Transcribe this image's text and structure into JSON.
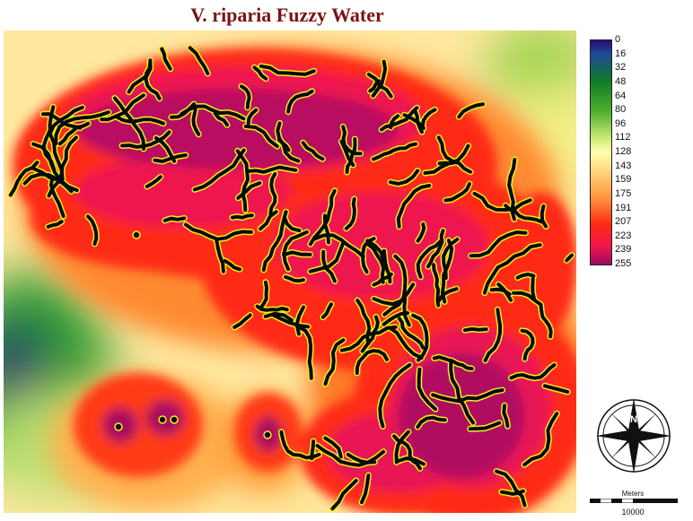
{
  "title": "V. riparia Fuzzy Water",
  "legend": {
    "ticks": [
      "0",
      "16",
      "32",
      "48",
      "64",
      "80",
      "96",
      "112",
      "128",
      "143",
      "159",
      "175",
      "191",
      "207",
      "223",
      "239",
      "255"
    ],
    "min": 0,
    "max": 255
  },
  "north_arrow": {
    "label": "N"
  },
  "scale_bar": {
    "unit": "Meters",
    "value": "10000"
  },
  "colors": {
    "background_raster": "#ffe8a0",
    "far_from_water": "#2a0a6e",
    "mid_distance": "#ffffb0",
    "near_water": "#ff2a12",
    "water_channel": "#0a0a0a",
    "channel_edge": "#f2ef1a",
    "title": "#7a1414"
  }
}
